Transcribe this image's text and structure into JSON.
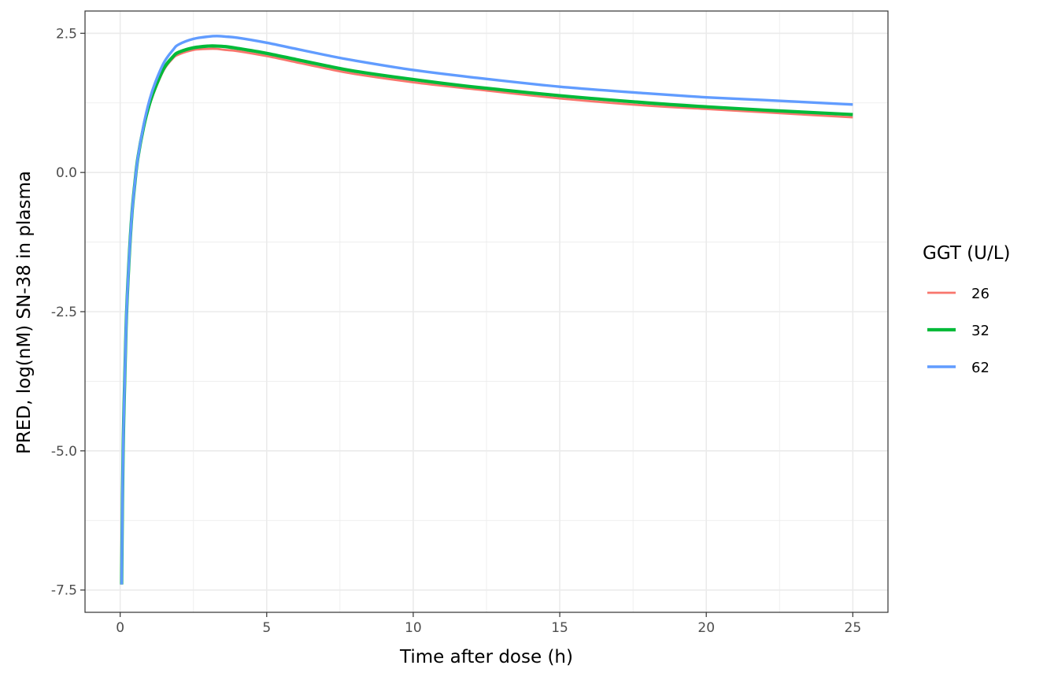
{
  "chart_data": {
    "type": "line",
    "title": "",
    "xlabel": "Time after dose (h)",
    "ylabel": "PRED, log(nM) SN-38 in plasma",
    "xlim": [
      -1.2,
      26.2
    ],
    "ylim": [
      -7.9,
      2.9
    ],
    "x_ticks": [
      0,
      5,
      10,
      15,
      20,
      25
    ],
    "x_tick_labels": [
      "0",
      "5",
      "10",
      "15",
      "20",
      "25"
    ],
    "y_ticks": [
      -7.5,
      -5.0,
      -2.5,
      0.0,
      2.5
    ],
    "y_tick_labels": [
      "-7.5",
      "-5.0",
      "-2.5",
      "0.0",
      "2.5"
    ],
    "grid": true,
    "legend": {
      "title": "GGT (U/L)",
      "position": "right"
    },
    "series": [
      {
        "name": "26",
        "color": "#F8766D",
        "x": [
          0.05,
          0.1,
          0.2,
          0.3,
          0.4,
          0.5,
          0.6,
          0.8,
          1.0,
          1.2,
          1.5,
          1.8,
          2.0,
          2.5,
          3.0,
          3.3,
          3.6,
          4.0,
          5.0,
          6.0,
          7.0,
          8.0,
          10.0,
          12.0,
          15.0,
          18.0,
          20.0,
          22.0,
          25.0
        ],
        "y": [
          -7.4,
          -5.0,
          -2.8,
          -1.6,
          -0.75,
          -0.2,
          0.25,
          0.8,
          1.2,
          1.5,
          1.85,
          2.05,
          2.12,
          2.2,
          2.22,
          2.22,
          2.2,
          2.18,
          2.09,
          1.98,
          1.87,
          1.77,
          1.62,
          1.5,
          1.33,
          1.2,
          1.14,
          1.08,
          0.99
        ]
      },
      {
        "name": "32",
        "color": "#00BA38",
        "x": [
          0.05,
          0.1,
          0.2,
          0.3,
          0.4,
          0.5,
          0.6,
          0.8,
          1.0,
          1.2,
          1.5,
          1.8,
          2.0,
          2.5,
          3.0,
          3.3,
          3.6,
          4.0,
          5.0,
          6.0,
          7.0,
          8.0,
          10.0,
          12.0,
          15.0,
          18.0,
          20.0,
          22.0,
          25.0
        ],
        "y": [
          -7.4,
          -5.0,
          -2.8,
          -1.6,
          -0.75,
          -0.2,
          0.25,
          0.82,
          1.23,
          1.53,
          1.88,
          2.08,
          2.16,
          2.24,
          2.27,
          2.27,
          2.26,
          2.23,
          2.14,
          2.03,
          1.92,
          1.82,
          1.67,
          1.54,
          1.38,
          1.25,
          1.18,
          1.12,
          1.04
        ]
      },
      {
        "name": "62",
        "color": "#619CFF",
        "x": [
          0.05,
          0.1,
          0.2,
          0.3,
          0.4,
          0.5,
          0.6,
          0.8,
          1.0,
          1.2,
          1.5,
          1.8,
          2.0,
          2.5,
          3.0,
          3.3,
          3.6,
          4.0,
          5.0,
          6.0,
          7.0,
          8.0,
          10.0,
          12.0,
          15.0,
          18.0,
          20.0,
          22.0,
          25.0
        ],
        "y": [
          -7.4,
          -5.0,
          -2.8,
          -1.6,
          -0.75,
          -0.2,
          0.25,
          0.85,
          1.3,
          1.62,
          1.98,
          2.2,
          2.3,
          2.4,
          2.44,
          2.45,
          2.44,
          2.42,
          2.33,
          2.22,
          2.11,
          2.01,
          1.84,
          1.71,
          1.54,
          1.42,
          1.35,
          1.3,
          1.22
        ]
      }
    ]
  }
}
